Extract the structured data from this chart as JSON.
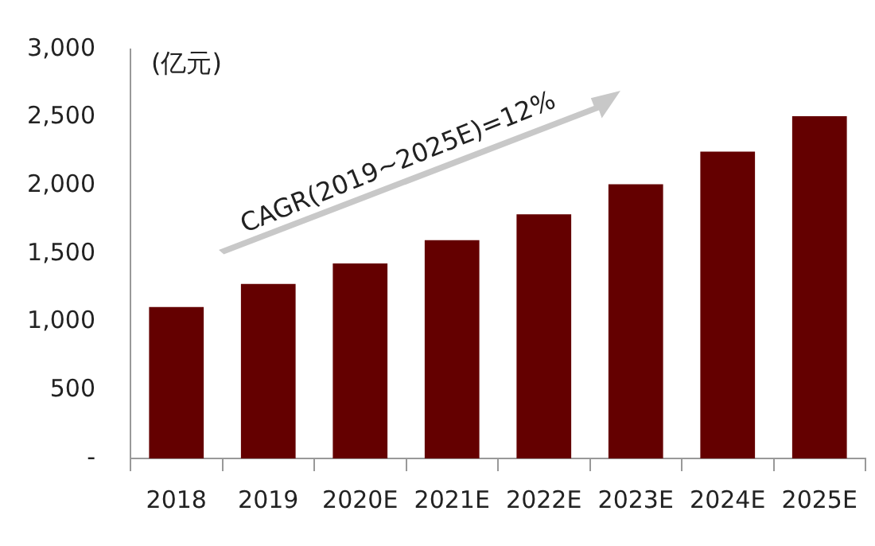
{
  "chart_data": {
    "type": "bar",
    "ylabel": "(亿元)",
    "categories": [
      "2018",
      "2019",
      "2020E",
      "2021E",
      "2022E",
      "2023E",
      "2024E",
      "2025E"
    ],
    "values": [
      1110,
      1280,
      1430,
      1600,
      1790,
      2010,
      2250,
      2510
    ],
    "color": "#640000",
    "ylim": [
      0,
      3000
    ],
    "yticks": [
      {
        "value": 0,
        "label": "-"
      },
      500,
      {
        "value": 1000,
        "label": "1,000"
      },
      {
        "value": 1500,
        "label": "1,500"
      },
      {
        "value": 2000,
        "label": "2,000"
      },
      {
        "value": 2500,
        "label": "2,500"
      },
      {
        "value": 3000,
        "label": "3,000"
      }
    ],
    "annotations": [
      "CAGR(2019~2025E)=12%"
    ],
    "grid": false,
    "legend": false
  }
}
